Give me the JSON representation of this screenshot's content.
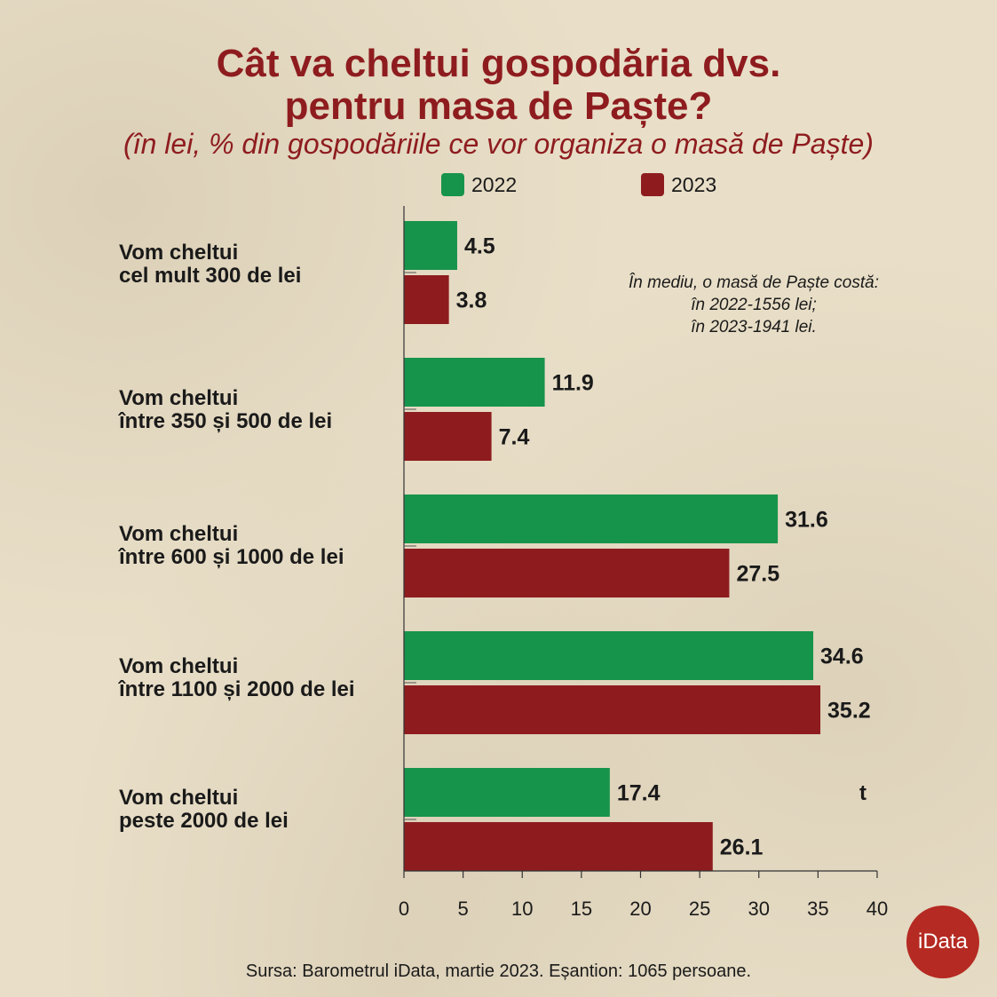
{
  "title_line1": "Cât va cheltui gospodăria dvs.",
  "title_line2": "pentru masa de Paște?",
  "subtitle": "(în lei, % din gospodăriile ce vor organiza o masă de Paște)",
  "note": {
    "line1": "În mediu, o masă de Paște costă:",
    "line2": "în 2022-1556 lei;",
    "line3": "în 2023-1941 lei."
  },
  "stray_text": "t",
  "footer": "Sursa: Barometrul iData, martie 2023. Eșantion: 1065 persoane.",
  "logo_text": "iData",
  "category_labels": [
    {
      "line1": "Vom cheltui",
      "line2": "cel mult 300 de lei"
    },
    {
      "line1": "Vom cheltui",
      "line2": "între 350 și 500 de lei"
    },
    {
      "line1": "Vom cheltui",
      "line2": "între 600 și 1000 de lei"
    },
    {
      "line1": "Vom cheltui",
      "line2": "între 1100 și 2000 de lei"
    },
    {
      "line1": "Vom cheltui",
      "line2": "peste 2000 de lei"
    }
  ],
  "colors": {
    "series_2022": "#17944b",
    "series_2023": "#8e1c1f",
    "title": "#8e1c1f",
    "background": "#e9dfc8"
  },
  "chart_data": {
    "type": "bar",
    "orientation": "horizontal",
    "categories": [
      "Vom cheltui cel mult 300 de lei",
      "Vom cheltui între 350 și 500 de lei",
      "Vom cheltui între 600 și 1000 de lei",
      "Vom cheltui între 1100 și 2000 de lei",
      "Vom cheltui peste 2000 de lei"
    ],
    "series": [
      {
        "name": "2022",
        "values": [
          4.5,
          11.9,
          31.6,
          34.6,
          17.4
        ]
      },
      {
        "name": "2023",
        "values": [
          3.8,
          7.4,
          27.5,
          35.2,
          26.1
        ]
      }
    ],
    "value_labels": [
      [
        "4.5",
        "11.9",
        "31.6",
        "34.6",
        "17.4"
      ],
      [
        "3.8",
        "7.4",
        "27.5",
        "35.2",
        "26.1"
      ]
    ],
    "xlim": [
      0,
      40
    ],
    "xticks": [
      "0",
      "5",
      "10",
      "15",
      "20",
      "25",
      "30",
      "35",
      "40"
    ],
    "grid": false,
    "legend_position": "top"
  }
}
